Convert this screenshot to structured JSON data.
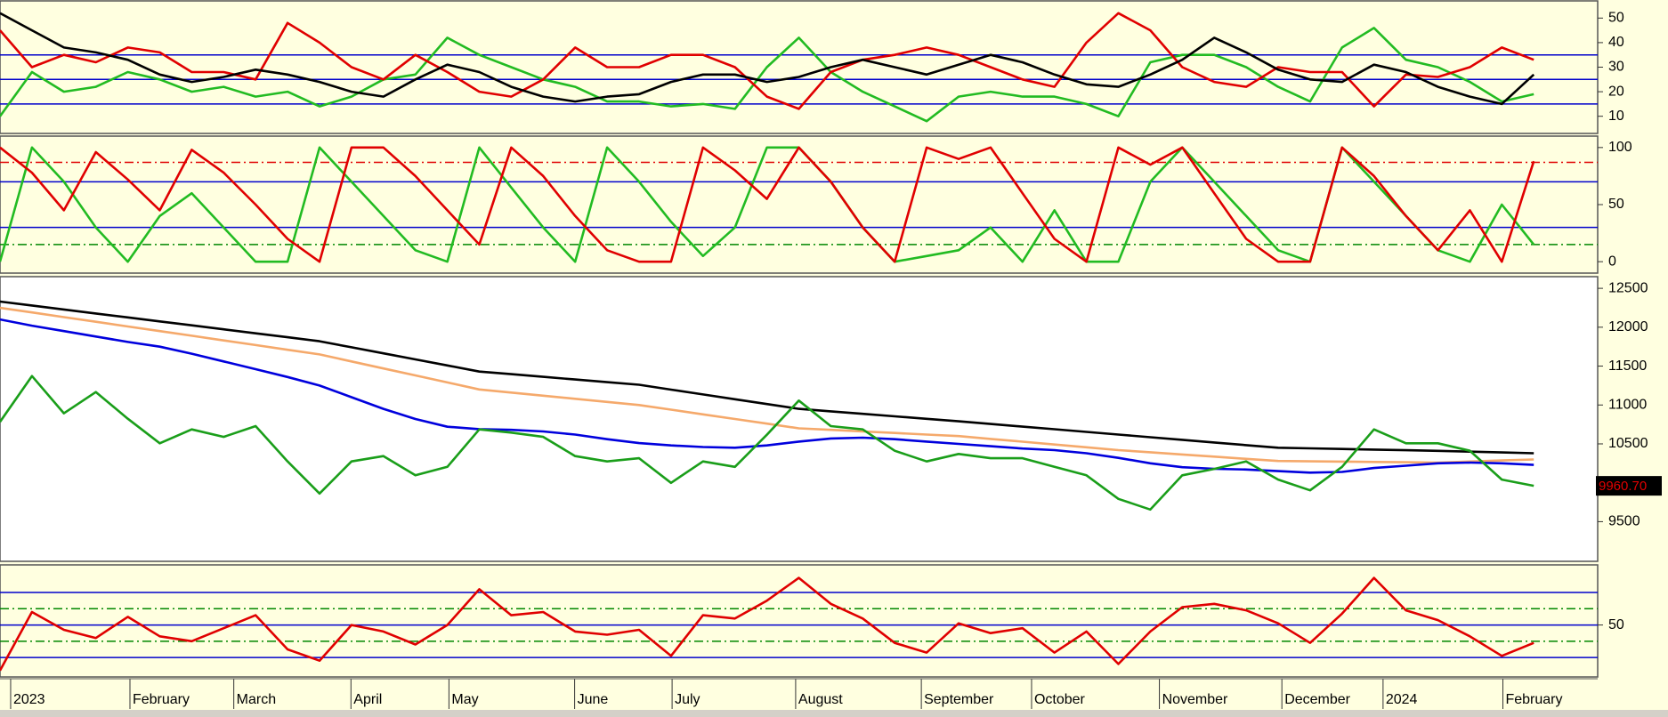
{
  "chart_data": [
    {
      "type": "line",
      "background": "#ffffe0",
      "x": [
        0,
        6,
        12,
        18,
        24,
        30,
        36,
        42,
        48,
        54,
        60,
        66,
        72,
        78,
        84,
        90,
        96,
        102,
        108,
        114,
        120,
        126,
        132,
        138,
        144,
        150,
        156,
        162,
        168,
        174,
        180,
        186,
        192,
        198,
        204,
        210,
        216,
        222,
        228,
        234,
        240,
        246,
        252,
        258,
        264,
        270,
        276,
        282,
        288
      ],
      "xlim": [
        0,
        300
      ],
      "ylim": [
        3,
        57
      ],
      "yticks": [
        10,
        20,
        30,
        40,
        50
      ],
      "hlines": [
        {
          "value": 15,
          "color": "#0000cc",
          "style": "solid"
        },
        {
          "value": 25,
          "color": "#0000cc",
          "style": "solid"
        },
        {
          "value": 35,
          "color": "#0000cc",
          "style": "solid"
        }
      ],
      "series": [
        {
          "color": "#22bb22",
          "values": [
            10,
            28,
            20,
            22,
            28,
            25,
            20,
            22,
            18,
            20,
            14,
            18,
            25,
            27,
            42,
            35,
            30,
            25,
            22,
            16,
            16,
            14,
            15,
            13,
            30,
            42,
            28,
            20,
            14,
            8,
            18,
            20,
            18,
            18,
            15,
            10,
            32,
            35,
            35,
            30,
            22,
            16,
            38,
            46,
            33,
            30,
            24,
            16,
            19
          ]
        },
        {
          "color": "#e00000",
          "values": [
            45,
            30,
            35,
            32,
            38,
            36,
            28,
            28,
            25,
            48,
            40,
            30,
            25,
            35,
            28,
            20,
            18,
            25,
            38,
            30,
            30,
            35,
            35,
            30,
            18,
            13,
            28,
            33,
            35,
            38,
            35,
            30,
            25,
            22,
            40,
            52,
            45,
            30,
            24,
            22,
            30,
            28,
            28,
            14,
            27,
            26,
            30,
            38,
            33
          ]
        },
        {
          "color": "#000000",
          "values": [
            52,
            45,
            38,
            36,
            33,
            27,
            24,
            26,
            29,
            27,
            24,
            20,
            18,
            25,
            31,
            28,
            22,
            18,
            16,
            18,
            19,
            24,
            27,
            27,
            24,
            26,
            30,
            33,
            30,
            27,
            31,
            35,
            32,
            27,
            23,
            22,
            27,
            33,
            42,
            36,
            29,
            25,
            24,
            31,
            28,
            22,
            18,
            15,
            27
          ]
        }
      ]
    },
    {
      "type": "line",
      "background": "#ffffe0",
      "x": [
        0,
        6,
        12,
        18,
        24,
        30,
        36,
        42,
        48,
        54,
        60,
        66,
        72,
        78,
        84,
        90,
        96,
        102,
        108,
        114,
        120,
        126,
        132,
        138,
        144,
        150,
        156,
        162,
        168,
        174,
        180,
        186,
        192,
        198,
        204,
        210,
        216,
        222,
        228,
        234,
        240,
        246,
        252,
        258,
        264,
        270,
        276,
        282,
        288
      ],
      "xlim": [
        0,
        300
      ],
      "ylim": [
        -10,
        110
      ],
      "yticks": [
        0,
        50,
        100
      ],
      "hlines": [
        {
          "value": 87,
          "color": "#e00000",
          "style": "dashdot"
        },
        {
          "value": 70,
          "color": "#0000cc",
          "style": "solid"
        },
        {
          "value": 30,
          "color": "#0000cc",
          "style": "solid"
        },
        {
          "value": 15,
          "color": "#008800",
          "style": "dashdot"
        }
      ],
      "series": [
        {
          "color": "#22bb22",
          "values": [
            0,
            100,
            70,
            30,
            0,
            40,
            60,
            30,
            0,
            0,
            100,
            70,
            40,
            10,
            0,
            100,
            65,
            30,
            0,
            100,
            70,
            35,
            5,
            30,
            100,
            100,
            70,
            30,
            0,
            5,
            10,
            30,
            0,
            45,
            0,
            0,
            70,
            100,
            70,
            40,
            10,
            0,
            100,
            70,
            40,
            10,
            0,
            50,
            15
          ]
        },
        {
          "color": "#e00000",
          "values": [
            100,
            78,
            45,
            96,
            72,
            45,
            98,
            78,
            50,
            20,
            0,
            100,
            100,
            75,
            45,
            15,
            100,
            75,
            40,
            10,
            0,
            0,
            100,
            80,
            55,
            100,
            70,
            30,
            0,
            100,
            90,
            100,
            60,
            20,
            0,
            100,
            85,
            100,
            60,
            20,
            0,
            0,
            100,
            75,
            40,
            10,
            45,
            0,
            88
          ]
        }
      ]
    },
    {
      "type": "line",
      "background": "#ffffff",
      "x": [
        0,
        6,
        12,
        18,
        24,
        30,
        36,
        42,
        48,
        54,
        60,
        66,
        72,
        78,
        84,
        90,
        96,
        102,
        108,
        114,
        120,
        126,
        132,
        138,
        144,
        150,
        156,
        162,
        168,
        174,
        180,
        186,
        192,
        198,
        204,
        210,
        216,
        222,
        228,
        234,
        240,
        246,
        252,
        258,
        264,
        270,
        276,
        282,
        288
      ],
      "xlim": [
        0,
        300
      ],
      "ylim": [
        8990,
        12650
      ],
      "yticks": [
        9500,
        10500,
        11000,
        11500,
        12000,
        12500
      ],
      "price_label": {
        "value": 9960.7,
        "label": "9960.70"
      },
      "series": [
        {
          "color": "#000000",
          "values": [
            12330,
            12279,
            12228,
            12177,
            12126,
            12075,
            12024,
            11973,
            11922,
            11871,
            11820,
            11742,
            11664,
            11586,
            11508,
            11430,
            11396,
            11362,
            11328,
            11294,
            11260,
            11198,
            11136,
            11074,
            11012,
            10950,
            10918,
            10886,
            10854,
            10822,
            10790,
            10756,
            10722,
            10688,
            10654,
            10620,
            10586,
            10552,
            10518,
            10484,
            10450,
            10442,
            10434,
            10426,
            10418,
            10410,
            10400,
            10390,
            10380
          ]
        },
        {
          "color": "#f5a96b",
          "values": [
            12250,
            12190,
            12130,
            12070,
            12010,
            11950,
            11890,
            11830,
            11770,
            11710,
            11650,
            11560,
            11470,
            11380,
            11290,
            11200,
            11160,
            11120,
            11080,
            11040,
            11000,
            10940,
            10880,
            10820,
            10760,
            10700,
            10680,
            10660,
            10640,
            10620,
            10600,
            10564,
            10528,
            10492,
            10456,
            10420,
            10392,
            10364,
            10336,
            10308,
            10280,
            10276,
            10272,
            10268,
            10264,
            10260,
            10273,
            10287,
            10300
          ]
        },
        {
          "color": "#0000dd",
          "values": [
            12100,
            12020,
            11950,
            11880,
            11810,
            11750,
            11660,
            11560,
            11460,
            11360,
            11250,
            11100,
            10950,
            10820,
            10720,
            10690,
            10680,
            10660,
            10620,
            10560,
            10510,
            10480,
            10460,
            10450,
            10480,
            10530,
            10570,
            10580,
            10560,
            10530,
            10500,
            10470,
            10440,
            10420,
            10380,
            10320,
            10250,
            10200,
            10180,
            10170,
            10150,
            10130,
            10140,
            10190,
            10220,
            10250,
            10260,
            10250,
            10230
          ]
        },
        {
          "color": "#1a9e1a",
          "values": [
            10783,
            11373,
            10893,
            11167,
            10824,
            10508,
            10686,
            10590,
            10728,
            10274,
            9862,
            10274,
            10343,
            10096,
            10205,
            10686,
            10645,
            10590,
            10343,
            10274,
            10316,
            9999,
            10274,
            10205,
            10617,
            11057,
            10728,
            10686,
            10412,
            10274,
            10371,
            10316,
            10316,
            10205,
            10096,
            9793,
            9656,
            10096,
            10178,
            10274,
            10041,
            9903,
            10205,
            10686,
            10508,
            10508,
            10412,
            10041,
            9960.7
          ]
        }
      ]
    },
    {
      "type": "line",
      "background": "#ffffe0",
      "x": [
        0,
        6,
        12,
        18,
        24,
        30,
        36,
        42,
        48,
        54,
        60,
        66,
        72,
        78,
        84,
        90,
        96,
        102,
        108,
        114,
        120,
        126,
        132,
        138,
        144,
        150,
        156,
        162,
        168,
        174,
        180,
        186,
        192,
        198,
        204,
        210,
        216,
        222,
        228,
        234,
        240,
        246,
        252,
        258,
        264,
        270,
        276,
        282,
        288
      ],
      "xlim": [
        0,
        300
      ],
      "ylim": [
        18,
        87
      ],
      "yticks": [
        50
      ],
      "hlines": [
        {
          "value": 70,
          "color": "#0000cc",
          "style": "solid"
        },
        {
          "value": 60,
          "color": "#008800",
          "style": "dashdot"
        },
        {
          "value": 50,
          "color": "#0000cc",
          "style": "solid"
        },
        {
          "value": 40,
          "color": "#008800",
          "style": "dashdot"
        },
        {
          "value": 30,
          "color": "#0000cc",
          "style": "solid"
        }
      ],
      "xticks": [
        {
          "value": 2,
          "label": "2023"
        },
        {
          "value": 24.4,
          "label": "February"
        },
        {
          "value": 43.9,
          "label": "March"
        },
        {
          "value": 65.9,
          "label": "April"
        },
        {
          "value": 84.3,
          "label": "May"
        },
        {
          "value": 107.9,
          "label": "June"
        },
        {
          "value": 126.2,
          "label": "July"
        },
        {
          "value": 149.4,
          "label": "August"
        },
        {
          "value": 173,
          "label": "September"
        },
        {
          "value": 193.7,
          "label": "October"
        },
        {
          "value": 217.7,
          "label": "November"
        },
        {
          "value": 240.7,
          "label": "December"
        },
        {
          "value": 259.7,
          "label": "2024"
        },
        {
          "value": 282.2,
          "label": "February"
        }
      ],
      "series": [
        {
          "color": "#e00000",
          "values": [
            22,
            58,
            47,
            42,
            55,
            43,
            40,
            48,
            56,
            35,
            28,
            50,
            46,
            38,
            50,
            72,
            56,
            58,
            46,
            44,
            47,
            31,
            56,
            54,
            65,
            79,
            63,
            54,
            39,
            33,
            51,
            45,
            48,
            33,
            46,
            26,
            46,
            61,
            63,
            59,
            51,
            39,
            57,
            79,
            59,
            53,
            43,
            31,
            39
          ]
        }
      ]
    }
  ]
}
